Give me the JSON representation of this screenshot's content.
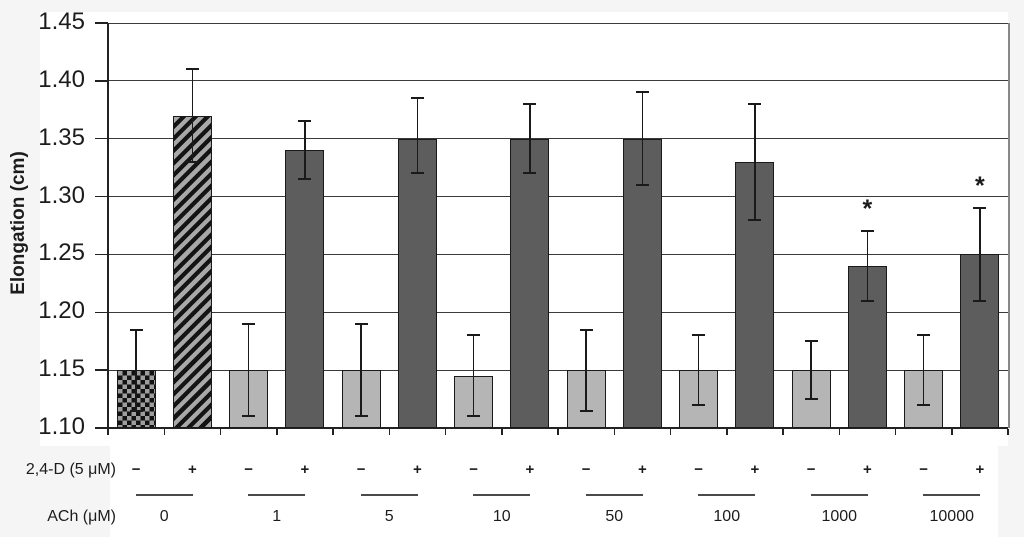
{
  "figure": {
    "background": "#f5f5f5",
    "plot_background": "#ffffff"
  },
  "chart_data": {
    "type": "bar",
    "title": "",
    "ylabel": "Elongation (cm)",
    "xlabel": "",
    "ylim": [
      1.1,
      1.45
    ],
    "ytick_step": 0.05,
    "yticks": [
      1.45,
      1.4,
      1.35,
      1.3,
      1.25,
      1.2,
      1.15,
      1.1
    ],
    "grid": true,
    "legend": "none",
    "x_axis": {
      "treatment_label": "2,4-D (5 μM)",
      "dose_label": "ACh (μM)",
      "minus_symbol": "−",
      "plus_symbol": "+"
    },
    "significance_marker": "*",
    "categories": [
      "0",
      "1",
      "5",
      "10",
      "50",
      "100",
      "1000",
      "10000"
    ],
    "groups": [
      {
        "ach": "0",
        "minus": {
          "value": 1.15,
          "err_low": 1.115,
          "err_high": 1.185,
          "style": "checker",
          "significant": false
        },
        "plus": {
          "value": 1.37,
          "err_low": 1.33,
          "err_high": 1.41,
          "style": "stripe",
          "significant": false
        }
      },
      {
        "ach": "1",
        "minus": {
          "value": 1.15,
          "err_low": 1.11,
          "err_high": 1.19,
          "style": "light",
          "significant": false
        },
        "plus": {
          "value": 1.34,
          "err_low": 1.315,
          "err_high": 1.365,
          "style": "dark",
          "significant": false
        }
      },
      {
        "ach": "5",
        "minus": {
          "value": 1.15,
          "err_low": 1.11,
          "err_high": 1.19,
          "style": "light",
          "significant": false
        },
        "plus": {
          "value": 1.35,
          "err_low": 1.32,
          "err_high": 1.385,
          "style": "dark",
          "significant": false
        }
      },
      {
        "ach": "10",
        "minus": {
          "value": 1.145,
          "err_low": 1.11,
          "err_high": 1.18,
          "style": "light",
          "significant": false
        },
        "plus": {
          "value": 1.35,
          "err_low": 1.32,
          "err_high": 1.38,
          "style": "dark",
          "significant": false
        }
      },
      {
        "ach": "50",
        "minus": {
          "value": 1.15,
          "err_low": 1.115,
          "err_high": 1.185,
          "style": "light",
          "significant": false
        },
        "plus": {
          "value": 1.35,
          "err_low": 1.31,
          "err_high": 1.39,
          "style": "dark",
          "significant": false
        }
      },
      {
        "ach": "100",
        "minus": {
          "value": 1.15,
          "err_low": 1.12,
          "err_high": 1.18,
          "style": "light",
          "significant": false
        },
        "plus": {
          "value": 1.33,
          "err_low": 1.28,
          "err_high": 1.38,
          "style": "dark",
          "significant": false
        }
      },
      {
        "ach": "1000",
        "minus": {
          "value": 1.15,
          "err_low": 1.125,
          "err_high": 1.175,
          "style": "light",
          "significant": false
        },
        "plus": {
          "value": 1.24,
          "err_low": 1.21,
          "err_high": 1.27,
          "style": "dark",
          "significant": true
        }
      },
      {
        "ach": "10000",
        "minus": {
          "value": 1.15,
          "err_low": 1.12,
          "err_high": 1.18,
          "style": "light",
          "significant": false
        },
        "plus": {
          "value": 1.25,
          "err_low": 1.21,
          "err_high": 1.29,
          "style": "dark",
          "significant": true
        }
      }
    ],
    "colors": {
      "light_bar": "#b5b5b5",
      "dark_bar": "#5d5d5d",
      "pattern_gray": "#a8a8a8",
      "checker_gray": "#9e9e9e",
      "bar_border": "#1a1a1a",
      "gridline": "#3a3a3a",
      "axis": "#222222",
      "right_border": "#888888",
      "error_bar": "#1a1a1a",
      "text": "#1c1c1c"
    }
  }
}
